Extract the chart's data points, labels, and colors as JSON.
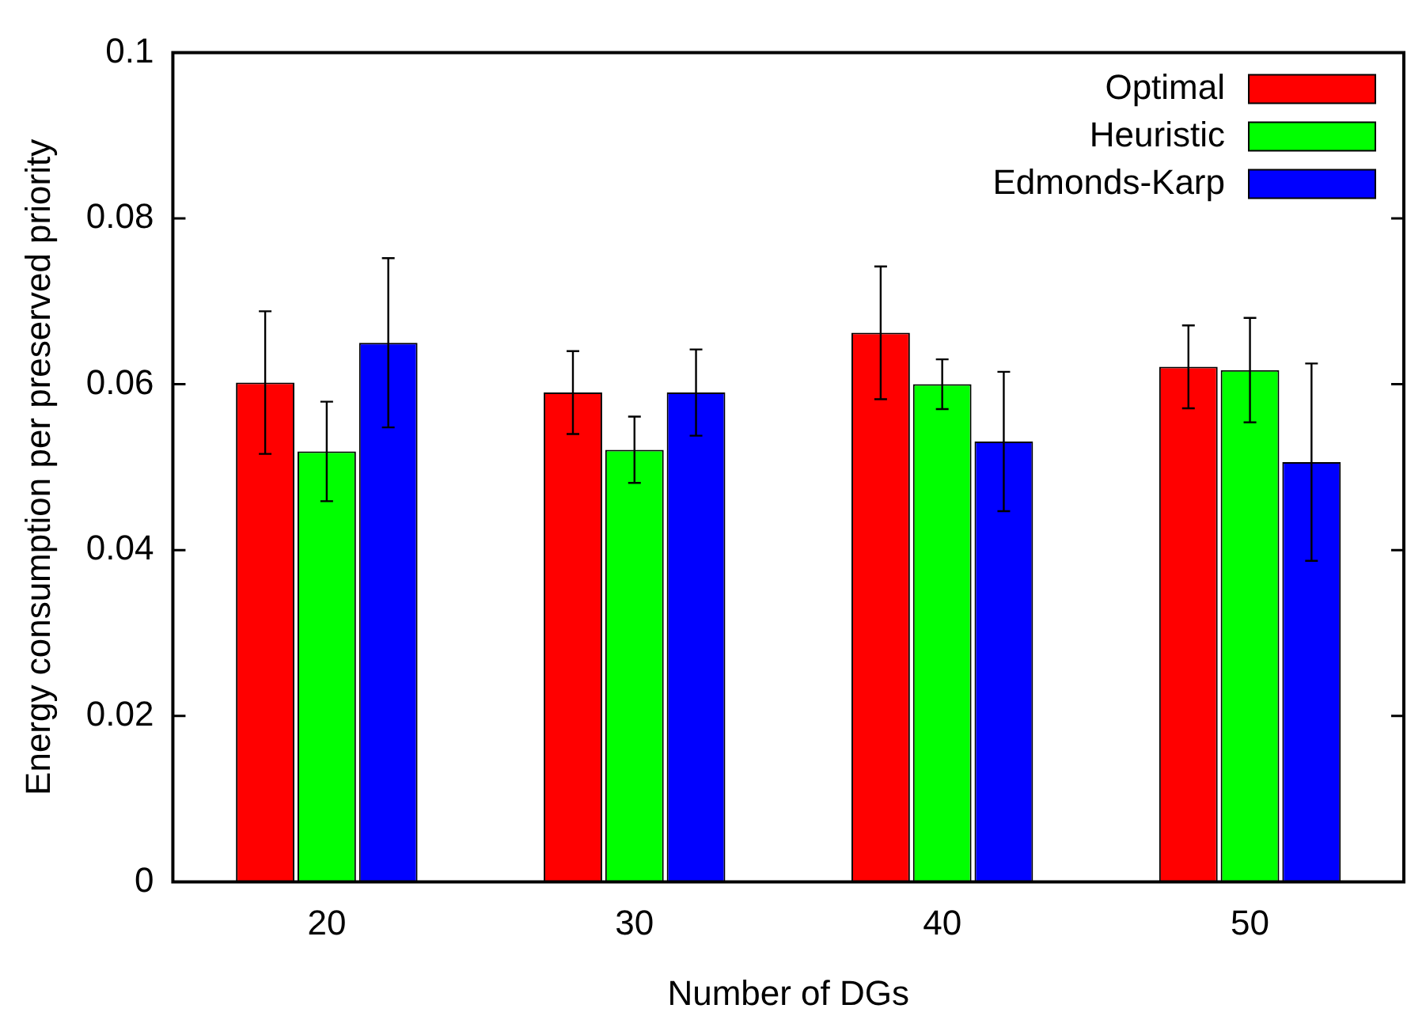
{
  "chart_data": {
    "type": "bar",
    "xlabel": "Number of DGs",
    "ylabel": "Energy consumption per preserved priority",
    "categories": [
      "20",
      "30",
      "40",
      "50"
    ],
    "ylim": [
      0,
      0.1
    ],
    "yticks": [
      0,
      0.02,
      0.04,
      0.06,
      0.08,
      0.1
    ],
    "grid": false,
    "legend": "top right",
    "series": [
      {
        "name": "Optimal",
        "color": "#ff0000",
        "values": [
          0.0602,
          0.059,
          0.0662,
          0.0621
        ],
        "errors": [
          0.0086,
          0.005,
          0.008,
          0.005
        ]
      },
      {
        "name": "Heuristic",
        "color": "#00ff00",
        "values": [
          0.0519,
          0.0521,
          0.06,
          0.0617
        ],
        "errors": [
          0.006,
          0.004,
          0.003,
          0.0063
        ]
      },
      {
        "name": "Edmonds-Karp",
        "color": "#0000ff",
        "values": [
          0.065,
          0.059,
          0.0531,
          0.0506
        ],
        "errors": [
          0.0102,
          0.0052,
          0.0084,
          0.0119
        ]
      }
    ]
  }
}
